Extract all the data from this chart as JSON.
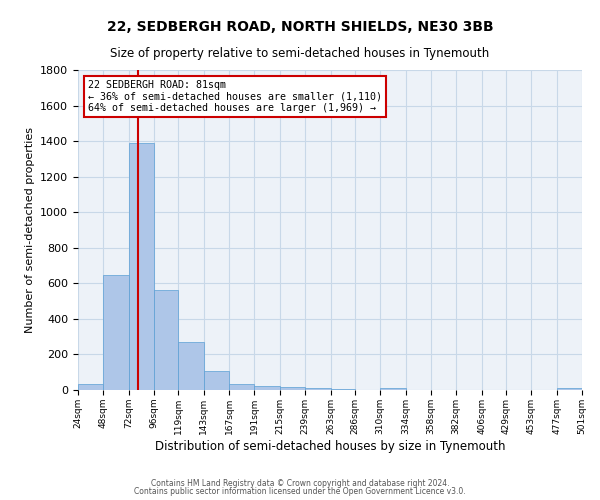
{
  "title": "22, SEDBERGH ROAD, NORTH SHIELDS, NE30 3BB",
  "subtitle": "Size of property relative to semi-detached houses in Tynemouth",
  "xlabel": "Distribution of semi-detached houses by size in Tynemouth",
  "ylabel": "Number of semi-detached properties",
  "bin_edges": [
    24,
    48,
    72,
    96,
    119,
    143,
    167,
    191,
    215,
    239,
    263,
    286,
    310,
    334,
    358,
    382,
    406,
    429,
    453,
    477,
    501
  ],
  "bar_heights": [
    35,
    648,
    1388,
    565,
    270,
    107,
    35,
    22,
    18,
    10,
    5,
    0,
    12,
    0,
    0,
    0,
    0,
    0,
    0,
    12
  ],
  "bar_color": "#aec6e8",
  "bar_edge_color": "#5a9fd4",
  "property_value": 81,
  "vline_color": "#cc0000",
  "annotation_title": "22 SEDBERGH ROAD: 81sqm",
  "annotation_line1": "← 36% of semi-detached houses are smaller (1,110)",
  "annotation_line2": "64% of semi-detached houses are larger (1,969) →",
  "annotation_box_color": "#cc0000",
  "ylim": [
    0,
    1800
  ],
  "yticks": [
    0,
    200,
    400,
    600,
    800,
    1000,
    1200,
    1400,
    1600,
    1800
  ],
  "tick_labels": [
    "24sqm",
    "48sqm",
    "72sqm",
    "96sqm",
    "119sqm",
    "143sqm",
    "167sqm",
    "191sqm",
    "215sqm",
    "239sqm",
    "263sqm",
    "286sqm",
    "310sqm",
    "334sqm",
    "358sqm",
    "382sqm",
    "406sqm",
    "429sqm",
    "453sqm",
    "477sqm",
    "501sqm"
  ],
  "footer1": "Contains HM Land Registry data © Crown copyright and database right 2024.",
  "footer2": "Contains public sector information licensed under the Open Government Licence v3.0.",
  "grid_color": "#c8d8e8",
  "background_color": "#edf2f8"
}
